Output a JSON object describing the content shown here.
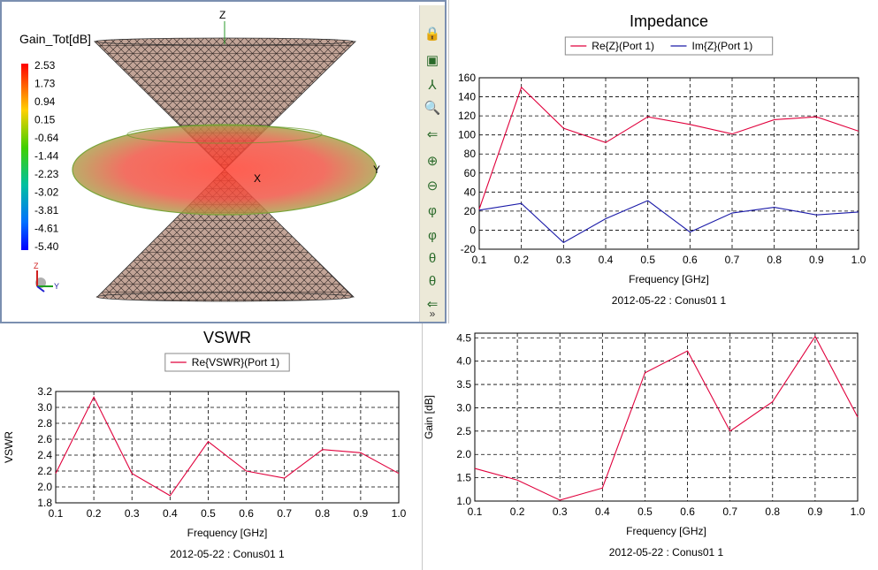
{
  "view3d": {
    "colorbar_title": "Gain_Tot[dB]",
    "colorbar_values": [
      "2.53",
      "1.73",
      "0.94",
      "0.15",
      "-0.64",
      "-1.44",
      "-2.23",
      "-3.02",
      "-3.81",
      "-4.61",
      "-5.40"
    ],
    "axis_z": "Z",
    "axis_x": "X",
    "axis_y": "Y",
    "triad_z": "Z",
    "triad_y": "Y",
    "colors": {
      "body": "#b89a8c",
      "torus": "#e23a2e",
      "torus_edge": "#6a9a2a"
    },
    "toolbar_icons": [
      "lock-z-icon",
      "fit-view-icon",
      "axes-r-icon",
      "zoom-window-icon",
      "back-arrow-icon",
      "zoom-in-icon",
      "zoom-out-icon",
      "rotate-phi-icon",
      "rotate-phi2-icon",
      "rotate-theta-icon",
      "rotate-theta2-icon",
      "small-arrow-icon",
      "expand-icon"
    ]
  },
  "chart_data": [
    {
      "id": "impedance",
      "type": "line",
      "title": "Impedance",
      "xlabel": "Frequency [GHz]",
      "ylabel": "",
      "footer": "2012-05-22 : Conus01 1",
      "x": [
        0.1,
        0.2,
        0.3,
        0.4,
        0.5,
        0.6,
        0.7,
        0.8,
        0.9,
        1.0
      ],
      "xticks": [
        "0.1",
        "0.2",
        "0.3",
        "0.4",
        "0.5",
        "0.6",
        "0.7",
        "0.8",
        "0.9",
        "1.0"
      ],
      "ylim": [
        -20,
        160
      ],
      "yticks": [
        "-20",
        "0",
        "20",
        "40",
        "60",
        "80",
        "100",
        "120",
        "140",
        "160"
      ],
      "legend": "top-center",
      "grid": true,
      "series": [
        {
          "name": "Re{Z}(Port 1)",
          "color": "#e0003c",
          "values": [
            22,
            150,
            107,
            92,
            119,
            111,
            101,
            116,
            119,
            104
          ]
        },
        {
          "name": "Im{Z}(Port 1)",
          "color": "#1a1aa8",
          "values": [
            21,
            28,
            -13,
            12,
            31,
            -2,
            18,
            24,
            16,
            19
          ]
        }
      ]
    },
    {
      "id": "vswr",
      "type": "line",
      "title": "VSWR",
      "xlabel": "Frequency [GHz]",
      "ylabel": "VSWR",
      "footer": "2012-05-22 : Conus01 1",
      "x": [
        0.1,
        0.2,
        0.3,
        0.4,
        0.5,
        0.6,
        0.7,
        0.8,
        0.9,
        1.0
      ],
      "xticks": [
        "0.1",
        "0.2",
        "0.3",
        "0.4",
        "0.5",
        "0.6",
        "0.7",
        "0.8",
        "0.9",
        "1.0"
      ],
      "ylim": [
        1.8,
        3.2
      ],
      "yticks": [
        "1.8",
        "2.0",
        "2.2",
        "2.4",
        "2.6",
        "2.8",
        "3.0",
        "3.2"
      ],
      "legend": "top-center",
      "grid": true,
      "series": [
        {
          "name": "Re{VSWR}(Port 1)",
          "color": "#e0003c",
          "values": [
            2.17,
            3.13,
            2.17,
            1.89,
            2.57,
            2.2,
            2.11,
            2.47,
            2.43,
            2.17
          ]
        }
      ]
    },
    {
      "id": "gain",
      "type": "line",
      "title": "",
      "xlabel": "Frequency [GHz]",
      "ylabel": "Gain [dB]",
      "footer": "2012-05-22 : Conus01 1",
      "x": [
        0.1,
        0.2,
        0.3,
        0.4,
        0.5,
        0.6,
        0.7,
        0.8,
        0.9,
        1.0
      ],
      "xticks": [
        "0.1",
        "0.2",
        "0.3",
        "0.4",
        "0.5",
        "0.6",
        "0.7",
        "0.8",
        "0.9",
        "1.0"
      ],
      "ylim": [
        1.0,
        4.6
      ],
      "yticks": [
        "1.0",
        "1.5",
        "2.0",
        "2.5",
        "3.0",
        "3.5",
        "4.0",
        "4.5"
      ],
      "legend": "none",
      "grid": true,
      "series": [
        {
          "name": "",
          "color": "#e0003c",
          "values": [
            1.7,
            1.45,
            1.02,
            1.28,
            3.75,
            4.22,
            2.5,
            3.13,
            4.53,
            2.8
          ]
        }
      ]
    }
  ]
}
